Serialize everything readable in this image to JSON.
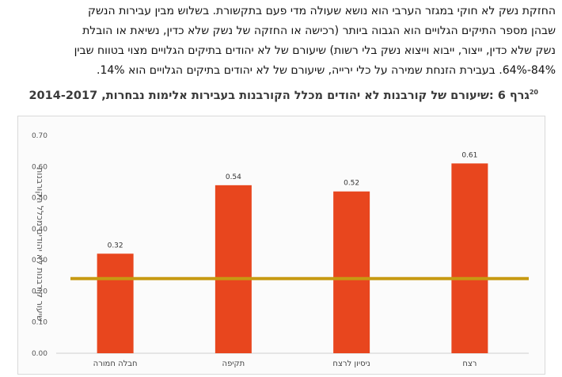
{
  "paragraph": {
    "lines": [
      "החזקת נשק לא חוקי במגזר הערבי הוא נושא שעולה מדי פעם בתקשורת. בשלוש מבין עבירות הנשק",
      "שבהן מספר התיקים הגלויים הוא הגבוה ביותר (רכישה או החזקה של נשק שלא כדין, נשיאת או הובלת",
      "נשק שלא כדין, ייצור, ייבוא וייצוא נשק בלי רשות) שיעורם של לא יהודים בתיקים הגלויים מצוי בטווח שבין",
      "84%-64%. בעבירת הזנחת שמירה על כלי ירייה, שיעורם של לא יהודים בתיקים הגלויים הוא 14%."
    ]
  },
  "chart_data": {
    "type": "bar",
    "title": "גרף 6 :שיעורם של קורבנות לא יהודים מכלל הקורבנות בעבירות אלימות נבחרות, 2014-2017",
    "title_footnote": "20",
    "categories": [
      "רצח",
      "ניסיון לרצח",
      "תקיפה",
      "חבלה חמורה"
    ],
    "values": [
      0.61,
      0.52,
      0.54,
      0.32
    ],
    "data_labels": [
      "0.61",
      "0.52",
      "0.54",
      "0.32"
    ],
    "reference_line": 0.24,
    "ylabel": "שיעור קורבנות לא יהודים מכלל הקורבנות",
    "xlabel": "",
    "ylim": [
      0,
      0.7
    ],
    "yticks": [
      "0.00",
      "0.10",
      "0.20",
      "0.30",
      "0.40",
      "0.50",
      "0.60",
      "0.70"
    ],
    "grid": false,
    "colors": {
      "bar": "#e8461e",
      "reference_line": "#c79a12",
      "axis": "#cfcfcf"
    }
  }
}
